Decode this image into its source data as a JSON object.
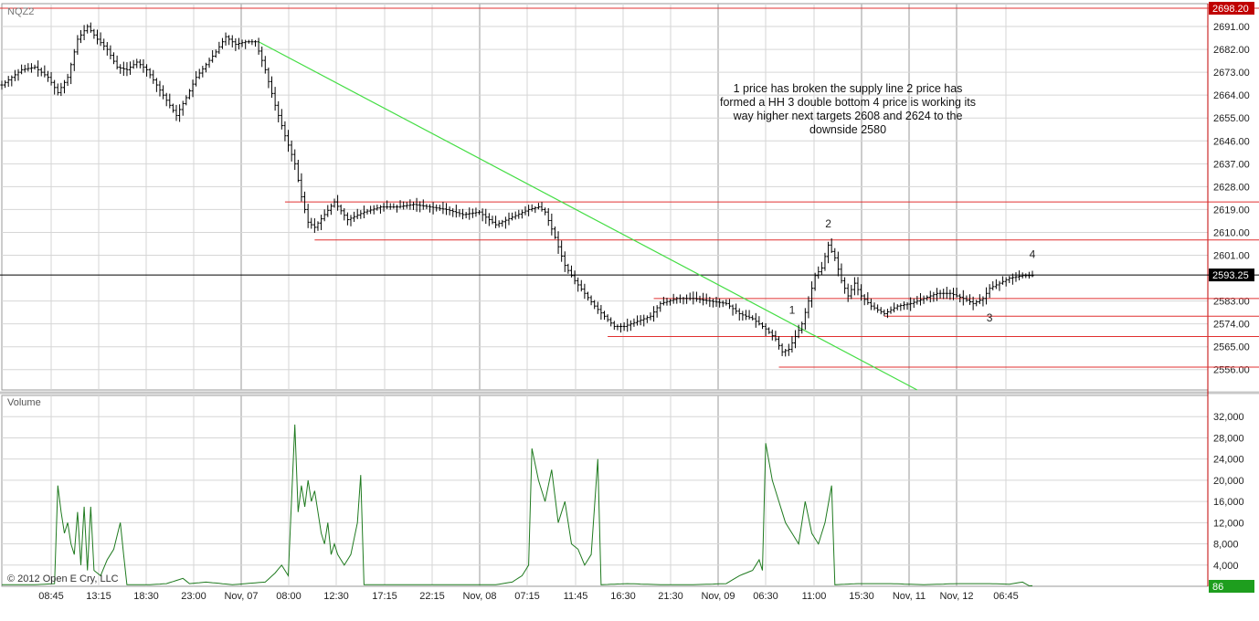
{
  "symbol": "NQZ2",
  "volume_label": "Volume",
  "copyright": "© 2012 Open E Cry, LLC",
  "annotation": [
    "1 price has broken the supply line 2 price has",
    "formed a HH 3 double bottom 4 price is working its",
    "way higher next targets 2608 and 2624 to the",
    "downside 2580"
  ],
  "marker_labels": [
    "1",
    "2",
    "3",
    "4"
  ],
  "last_price_label": "2593.25",
  "top_price_label": "2698.20",
  "last_volume_label": "86",
  "colors": {
    "bars": "#000000",
    "volume": "#1f7a1f",
    "supply_line": "#44dd44",
    "levels": "#e03030",
    "grid": "#d6d6d6",
    "price_tag": "#c00000"
  },
  "chart_data": [
    {
      "type": "ohlc",
      "title": "NQZ2",
      "x_tick_labels": [
        "08:45",
        "13:15",
        "18:30",
        "23:00",
        "Nov, 07",
        "08:00",
        "12:30",
        "17:15",
        "22:15",
        "Nov, 08",
        "07:15",
        "11:45",
        "16:30",
        "21:30",
        "Nov, 09",
        "06:30",
        "11:00",
        "15:30",
        "Nov, 11",
        "Nov, 12",
        "06:45"
      ],
      "y_tick_labels": [
        "2691.00",
        "2682.00",
        "2673.00",
        "2664.00",
        "2655.00",
        "2646.00",
        "2637.00",
        "2628.00",
        "2619.00",
        "2610.00",
        "2601.00",
        "2583.00",
        "2574.00",
        "2565.00",
        "2556.00"
      ],
      "ylim": [
        2548,
        2700
      ],
      "price_path": [
        [
          0,
          2668
        ],
        [
          6,
          2674
        ],
        [
          10,
          2675
        ],
        [
          14,
          2671
        ],
        [
          17,
          2665
        ],
        [
          20,
          2671
        ],
        [
          23,
          2686
        ],
        [
          26,
          2691
        ],
        [
          29,
          2686
        ],
        [
          32,
          2682
        ],
        [
          35,
          2675
        ],
        [
          38,
          2674
        ],
        [
          41,
          2677
        ],
        [
          44,
          2674
        ],
        [
          47,
          2668
        ],
        [
          50,
          2662
        ],
        [
          53,
          2656
        ],
        [
          56,
          2663
        ],
        [
          59,
          2671
        ],
        [
          62,
          2676
        ],
        [
          65,
          2681
        ],
        [
          68,
          2687
        ],
        [
          71,
          2684
        ],
        [
          74,
          2685
        ],
        [
          77,
          2685
        ],
        [
          80,
          2674
        ],
        [
          83,
          2660
        ],
        [
          86,
          2648
        ],
        [
          89,
          2637
        ],
        [
          91,
          2624
        ],
        [
          93,
          2614
        ],
        [
          95,
          2612
        ],
        [
          98,
          2617
        ],
        [
          101,
          2622
        ],
        [
          105,
          2615
        ],
        [
          110,
          2618
        ],
        [
          115,
          2620
        ],
        [
          120,
          2620
        ],
        [
          125,
          2621
        ],
        [
          130,
          2620
        ],
        [
          135,
          2619
        ],
        [
          140,
          2617
        ],
        [
          145,
          2618
        ],
        [
          150,
          2613
        ],
        [
          155,
          2616
        ],
        [
          160,
          2619
        ],
        [
          163,
          2620
        ],
        [
          165,
          2618
        ],
        [
          168,
          2608
        ],
        [
          171,
          2597
        ],
        [
          174,
          2591
        ],
        [
          177,
          2586
        ],
        [
          180,
          2581
        ],
        [
          183,
          2577
        ],
        [
          186,
          2573
        ],
        [
          189,
          2573
        ],
        [
          193,
          2575
        ],
        [
          197,
          2577
        ],
        [
          200,
          2582
        ],
        [
          205,
          2584
        ],
        [
          210,
          2584
        ],
        [
          215,
          2583
        ],
        [
          220,
          2582
        ],
        [
          224,
          2578
        ],
        [
          228,
          2576
        ],
        [
          232,
          2572
        ],
        [
          235,
          2568
        ],
        [
          237,
          2563
        ],
        [
          239,
          2564
        ],
        [
          241,
          2569
        ],
        [
          243,
          2574
        ],
        [
          245,
          2583
        ],
        [
          247,
          2593
        ],
        [
          249,
          2596
        ],
        [
          251,
          2605
        ],
        [
          253,
          2600
        ],
        [
          255,
          2591
        ],
        [
          257,
          2585
        ],
        [
          259,
          2590
        ],
        [
          261,
          2585
        ],
        [
          264,
          2581
        ],
        [
          268,
          2578
        ],
        [
          272,
          2581
        ],
        [
          276,
          2582
        ],
        [
          280,
          2584
        ],
        [
          284,
          2586
        ],
        [
          288,
          2586
        ],
        [
          292,
          2584
        ],
        [
          295,
          2582
        ],
        [
          298,
          2584
        ],
        [
          300,
          2588
        ],
        [
          303,
          2590
        ],
        [
          306,
          2592
        ],
        [
          310,
          2593
        ],
        [
          312,
          2593
        ]
      ],
      "levels": [
        {
          "price": 2698.2,
          "from": 0,
          "to": 353
        },
        {
          "price": 2622,
          "from": 86,
          "to": 353
        },
        {
          "price": 2607,
          "from": 95,
          "to": 353
        },
        {
          "price": 2593.25,
          "from": 0,
          "to": 353
        },
        {
          "price": 2584,
          "from": 198,
          "to": 353
        },
        {
          "price": 2577,
          "from": 268,
          "to": 353
        },
        {
          "price": 2569,
          "from": 184,
          "to": 353
        },
        {
          "price": 2557,
          "from": 236,
          "to": 353
        }
      ],
      "supply_line": [
        [
          78,
          2685
        ],
        [
          278,
          2548
        ]
      ],
      "marker_positions": [
        [
          240,
          2578
        ],
        [
          251,
          2612
        ],
        [
          300,
          2575
        ],
        [
          313,
          2600
        ]
      ]
    },
    {
      "type": "line",
      "title": "Volume",
      "y_tick_labels": [
        "32,000",
        "28,000",
        "24,000",
        "20,000",
        "16,000",
        "12,000",
        "8,000",
        "4,000"
      ],
      "ylim": [
        0,
        36000
      ],
      "volume_path": [
        [
          0,
          300
        ],
        [
          5,
          300
        ],
        [
          10,
          300
        ],
        [
          16,
          500
        ],
        [
          17,
          19000
        ],
        [
          18,
          14000
        ],
        [
          19,
          10000
        ],
        [
          20,
          12000
        ],
        [
          21,
          8000
        ],
        [
          22,
          6000
        ],
        [
          23,
          14000
        ],
        [
          24,
          4000
        ],
        [
          25,
          15000
        ],
        [
          26,
          3000
        ],
        [
          27,
          15000
        ],
        [
          28,
          3000
        ],
        [
          30,
          2000
        ],
        [
          32,
          5000
        ],
        [
          34,
          7000
        ],
        [
          36,
          12000
        ],
        [
          37,
          6000
        ],
        [
          38,
          300
        ],
        [
          45,
          300
        ],
        [
          50,
          500
        ],
        [
          55,
          1500
        ],
        [
          57,
          500
        ],
        [
          62,
          800
        ],
        [
          70,
          300
        ],
        [
          80,
          800
        ],
        [
          83,
          2500
        ],
        [
          85,
          4000
        ],
        [
          87,
          2000
        ],
        [
          89,
          30500
        ],
        [
          90,
          14000
        ],
        [
          91,
          19000
        ],
        [
          92,
          15000
        ],
        [
          93,
          20000
        ],
        [
          94,
          16000
        ],
        [
          95,
          18000
        ],
        [
          96,
          14000
        ],
        [
          97,
          10000
        ],
        [
          98,
          8000
        ],
        [
          99,
          12000
        ],
        [
          100,
          6000
        ],
        [
          101,
          8000
        ],
        [
          102,
          6000
        ],
        [
          103,
          5000
        ],
        [
          104,
          4000
        ],
        [
          106,
          6000
        ],
        [
          108,
          12000
        ],
        [
          109,
          21000
        ],
        [
          110,
          300
        ],
        [
          120,
          300
        ],
        [
          130,
          300
        ],
        [
          140,
          300
        ],
        [
          150,
          300
        ],
        [
          155,
          800
        ],
        [
          158,
          2000
        ],
        [
          160,
          4000
        ],
        [
          161,
          26000
        ],
        [
          163,
          20000
        ],
        [
          165,
          16000
        ],
        [
          167,
          22000
        ],
        [
          169,
          12000
        ],
        [
          171,
          16000
        ],
        [
          173,
          8000
        ],
        [
          175,
          7000
        ],
        [
          177,
          4000
        ],
        [
          179,
          6000
        ],
        [
          181,
          24000
        ],
        [
          182,
          300
        ],
        [
          190,
          500
        ],
        [
          200,
          300
        ],
        [
          210,
          300
        ],
        [
          220,
          500
        ],
        [
          224,
          2000
        ],
        [
          228,
          3000
        ],
        [
          230,
          5000
        ],
        [
          231,
          3000
        ],
        [
          232,
          27000
        ],
        [
          234,
          20000
        ],
        [
          236,
          16000
        ],
        [
          238,
          12000
        ],
        [
          240,
          10000
        ],
        [
          242,
          8000
        ],
        [
          244,
          16000
        ],
        [
          246,
          10000
        ],
        [
          248,
          8000
        ],
        [
          250,
          12000
        ],
        [
          252,
          19000
        ],
        [
          253,
          300
        ],
        [
          260,
          500
        ],
        [
          270,
          500
        ],
        [
          280,
          300
        ],
        [
          290,
          500
        ],
        [
          300,
          500
        ],
        [
          306,
          400
        ],
        [
          310,
          800
        ],
        [
          312,
          100
        ]
      ]
    }
  ]
}
